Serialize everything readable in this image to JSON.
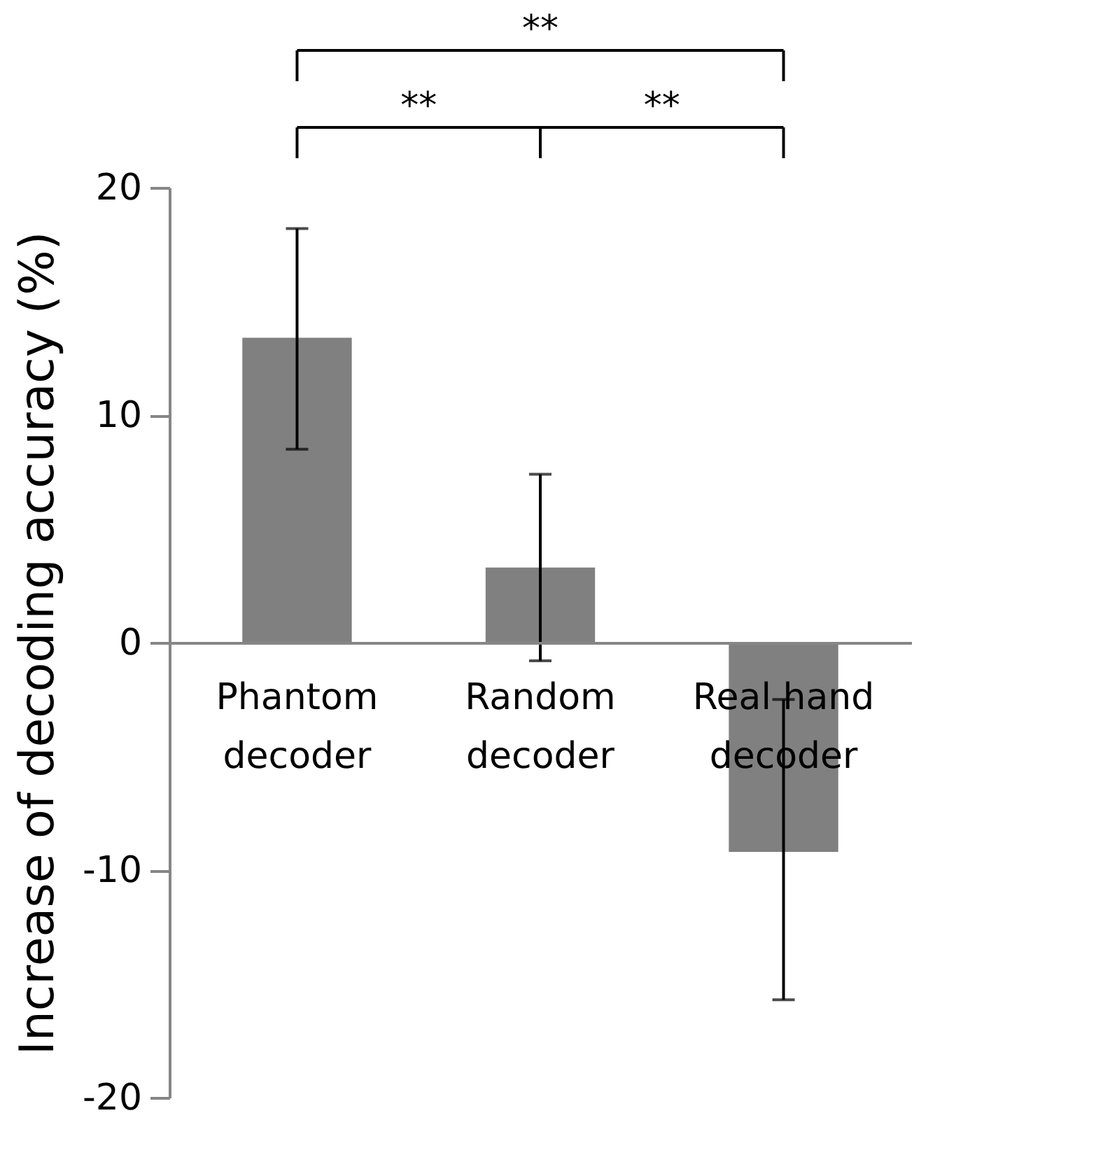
{
  "chart_data": {
    "type": "bar",
    "ylabel": "Increase of decoding accuracy (%)",
    "categories": [
      "Phantom decoder",
      "Random decoder",
      "Real hand decoder"
    ],
    "values": [
      13.4,
      3.3,
      -9.2
    ],
    "errors": [
      [
        8.5,
        18.2
      ],
      [
        -0.8,
        7.4
      ],
      [
        -15.7,
        -2.5
      ]
    ],
    "color": "#808080",
    "ylim": [
      -20,
      20
    ],
    "yticks": [
      -20,
      -10,
      0,
      10,
      20
    ],
    "grid": false,
    "annotations": [
      "**",
      "**",
      "**"
    ]
  }
}
